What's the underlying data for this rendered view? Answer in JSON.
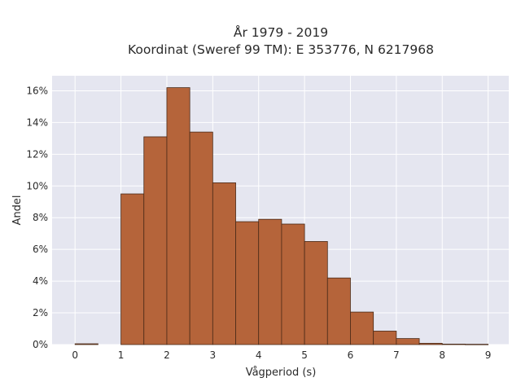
{
  "chart_data": {
    "type": "bar",
    "title_line1": "År 1979 - 2019",
    "title_line2": "Koordinat (Sweref 99 TM): E 353776, N 6217968",
    "xlabel": "Vågperiod (s)",
    "ylabel": "Andel",
    "bin_width": 0.5,
    "bins": [
      {
        "start": 0.0,
        "value": 0.05
      },
      {
        "start": 0.5,
        "value": 0.0
      },
      {
        "start": 1.0,
        "value": 9.5
      },
      {
        "start": 1.5,
        "value": 13.1
      },
      {
        "start": 2.0,
        "value": 16.2
      },
      {
        "start": 2.5,
        "value": 13.4
      },
      {
        "start": 3.0,
        "value": 10.2
      },
      {
        "start": 3.5,
        "value": 7.75
      },
      {
        "start": 4.0,
        "value": 7.9
      },
      {
        "start": 4.5,
        "value": 7.6
      },
      {
        "start": 5.0,
        "value": 6.5
      },
      {
        "start": 5.5,
        "value": 4.2
      },
      {
        "start": 6.0,
        "value": 2.05
      },
      {
        "start": 6.5,
        "value": 0.85
      },
      {
        "start": 7.0,
        "value": 0.38
      },
      {
        "start": 7.5,
        "value": 0.08
      },
      {
        "start": 8.0,
        "value": 0.03
      },
      {
        "start": 8.5,
        "value": 0.02
      }
    ],
    "x_ticks": [
      "0",
      "1",
      "2",
      "3",
      "4",
      "5",
      "6",
      "7",
      "8",
      "9"
    ],
    "y_ticks": [
      "0%",
      "2%",
      "4%",
      "6%",
      "8%",
      "10%",
      "12%",
      "14%",
      "16%"
    ],
    "xlim": [
      -0.5,
      9.45
    ],
    "ylim": [
      0,
      16.95
    ],
    "grid": true,
    "colors": {
      "bar_fill": "#b5643a",
      "bar_stroke": "#4a2a18",
      "plot_bg": "#e5e6f0",
      "grid": "#ffffff"
    }
  }
}
